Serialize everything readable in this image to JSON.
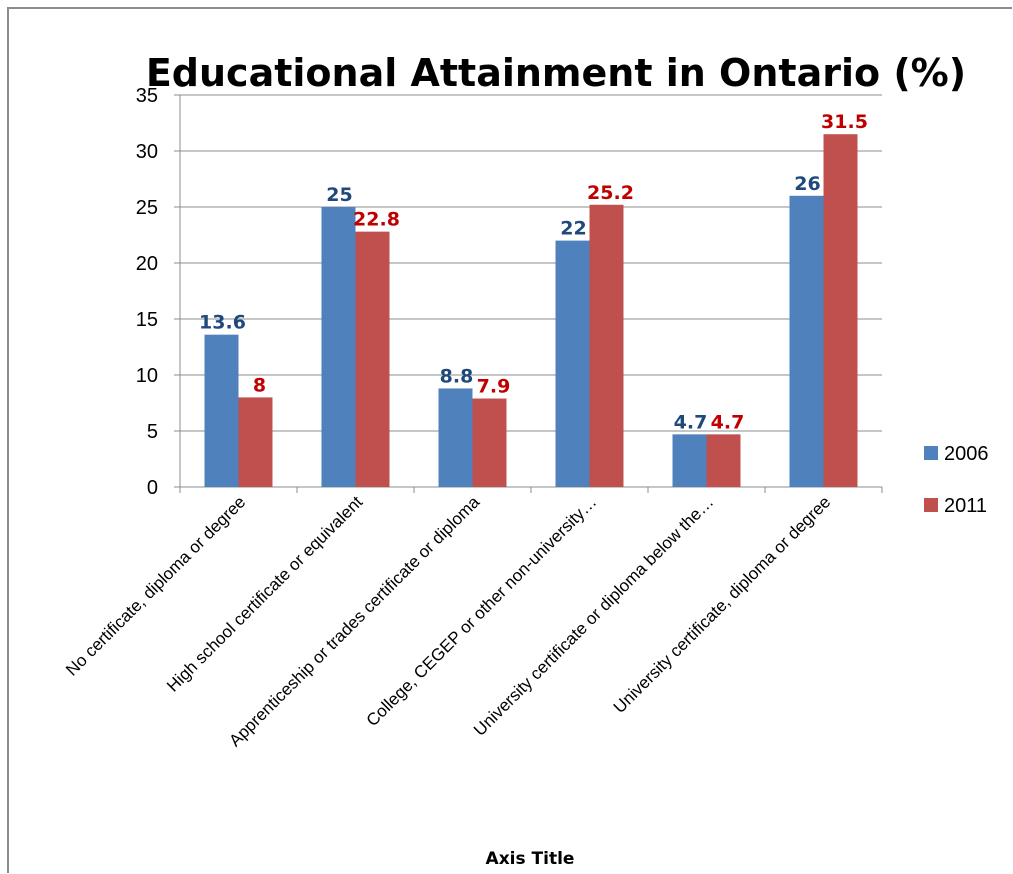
{
  "chart_data": {
    "type": "bar",
    "title": "Educational Attainment in Ontario (%)",
    "xlabel": "Axis Title",
    "ylabel": "",
    "ylim": [
      0,
      35
    ],
    "yticks": [
      0,
      5,
      10,
      15,
      20,
      25,
      30,
      35
    ],
    "grid": true,
    "legend_position": "right",
    "categories": [
      "No certificate, diploma or degree",
      "High school certificate or equivalent",
      "Apprenticeship or trades certificate or diploma",
      "College, CEGEP or other non-university…",
      "University certificate or diploma below the…",
      "University certificate, diploma or degree"
    ],
    "series": [
      {
        "name": "2006",
        "values": [
          13.6,
          25,
          8.8,
          22,
          4.7,
          26
        ],
        "color": "#4f81bd",
        "label_color": "#1f497d"
      },
      {
        "name": "2011",
        "values": [
          8,
          22.8,
          7.9,
          25.2,
          4.7,
          31.5
        ],
        "color": "#c0504d",
        "label_color": "#c00000"
      }
    ]
  }
}
